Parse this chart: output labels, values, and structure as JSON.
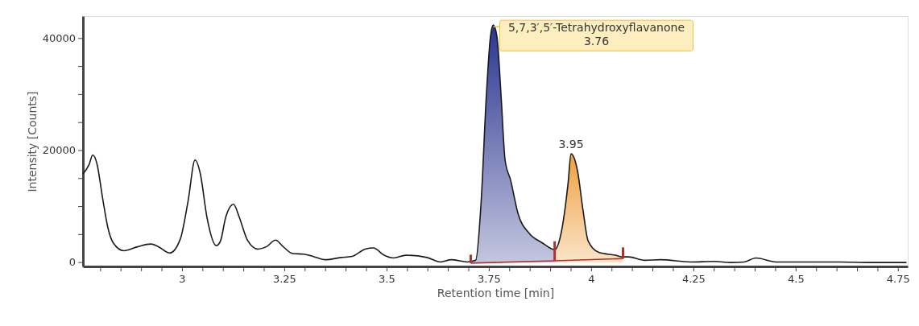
{
  "chart_data": {
    "type": "line",
    "xlabel": "Retention time [min]",
    "ylabel": "Intensity [Counts]",
    "xlim": [
      2.757,
      4.773
    ],
    "ylim": [
      -700,
      44000
    ],
    "xticks": [
      {
        "value": 2.8,
        "label": null
      },
      {
        "value": 2.85,
        "label": null
      },
      {
        "value": 2.9,
        "label": null
      },
      {
        "value": 2.95,
        "label": null
      },
      3,
      {
        "value": 3.05,
        "label": null
      },
      {
        "value": 3.1,
        "label": null
      },
      {
        "value": 3.15,
        "label": null
      },
      {
        "value": 3.2,
        "label": null
      },
      3.25,
      {
        "value": 3.3,
        "label": null
      },
      {
        "value": 3.35,
        "label": null
      },
      {
        "value": 3.4,
        "label": null
      },
      {
        "value": 3.45,
        "label": null
      },
      3.5,
      {
        "value": 3.55,
        "label": null
      },
      {
        "value": 3.6,
        "label": null
      },
      {
        "value": 3.65,
        "label": null
      },
      {
        "value": 3.7,
        "label": null
      },
      3.75,
      {
        "value": 3.8,
        "label": null
      },
      {
        "value": 3.85,
        "label": null
      },
      {
        "value": 3.9,
        "label": null
      },
      {
        "value": 3.95,
        "label": null
      },
      4,
      {
        "value": 4.05,
        "label": null
      },
      {
        "value": 4.1,
        "label": null
      },
      {
        "value": 4.15,
        "label": null
      },
      {
        "value": 4.2,
        "label": null
      },
      4.25,
      {
        "value": 4.3,
        "label": null
      },
      {
        "value": 4.35,
        "label": null
      },
      {
        "value": 4.4,
        "label": null
      },
      {
        "value": 4.45,
        "label": null
      },
      4.5,
      {
        "value": 4.55,
        "label": null
      },
      {
        "value": 4.6,
        "label": null
      },
      {
        "value": 4.65,
        "label": null
      },
      {
        "value": 4.7,
        "label": null
      },
      4.75
    ],
    "yticks": [
      0,
      {
        "value": 5000,
        "label": null
      },
      {
        "value": 10000,
        "label": null
      },
      {
        "value": 15000,
        "label": null
      },
      20000,
      {
        "value": 25000,
        "label": null
      },
      {
        "value": 30000,
        "label": null
      },
      {
        "value": 35000,
        "label": null
      },
      40000
    ],
    "grid": false,
    "series": [
      {
        "type": "area",
        "color": "#2a3590",
        "x": [
          3.705,
          3.717,
          3.73,
          3.743,
          3.753,
          3.76,
          3.769,
          3.779,
          3.789,
          3.802,
          3.821,
          3.848,
          3.88,
          3.91
        ],
        "values": [
          200,
          400,
          10500,
          29800,
          40300,
          42400,
          40300,
          29800,
          18200,
          14800,
          8600,
          5200,
          3500,
          2300
        ]
      },
      {
        "type": "area",
        "color": "#f0a040",
        "x": [
          3.91,
          3.927,
          3.943,
          3.95,
          3.966,
          3.979,
          3.992,
          4.018,
          4.058,
          4.077
        ],
        "values": [
          2300,
          5700,
          14300,
          19400,
          16300,
          9500,
          3800,
          1800,
          1300,
          1000
        ]
      },
      {
        "color": "#1a1a1a",
        "x": [
          2.757,
          2.772,
          2.781,
          2.791,
          2.805,
          2.818,
          2.831,
          2.857,
          2.89,
          2.923,
          2.942,
          2.969,
          2.995,
          3.014,
          3.031,
          3.044,
          3.06,
          3.083,
          3.093,
          3.106,
          3.125,
          3.139,
          3.159,
          3.185,
          3.205,
          3.228,
          3.244,
          3.27,
          3.297,
          3.323,
          3.349,
          3.388,
          3.415,
          3.447,
          3.467,
          3.493,
          3.516,
          3.546,
          3.598,
          3.631,
          3.657,
          3.697,
          3.705,
          3.717,
          3.73,
          3.743,
          3.753,
          3.76,
          3.769,
          3.779,
          3.789,
          3.802,
          3.821,
          3.848,
          3.88,
          3.91,
          3.927,
          3.943,
          3.95,
          3.966,
          3.979,
          3.992,
          4.018,
          4.058,
          4.077,
          4.091,
          4.13,
          4.169,
          4.242,
          4.301,
          4.34,
          4.373,
          4.402,
          4.451,
          4.51,
          4.609,
          4.675,
          4.77
        ],
        "values": [
          15800,
          17500,
          19200,
          17700,
          11500,
          6200,
          3500,
          2100,
          2800,
          3300,
          2800,
          1700,
          4200,
          11000,
          18300,
          15800,
          8100,
          3000,
          3800,
          8100,
          10400,
          8100,
          4000,
          2400,
          2800,
          4000,
          3000,
          1600,
          1500,
          1000,
          500,
          900,
          1100,
          2400,
          2600,
          1300,
          800,
          1300,
          900,
          100,
          500,
          100,
          200,
          400,
          10500,
          29800,
          40300,
          42400,
          40300,
          29800,
          18200,
          14800,
          8600,
          5200,
          3500,
          2300,
          5700,
          14300,
          19400,
          16300,
          9500,
          3800,
          1800,
          1300,
          1000,
          1000,
          400,
          500,
          100,
          200,
          0,
          100,
          800,
          100,
          100,
          100,
          0,
          0
        ]
      },
      {
        "type": "line",
        "color": "#b03030",
        "x": [
          3.705,
          3.91,
          4.077
        ],
        "values": [
          -100,
          300,
          700
        ],
        "errors": [
          [
            -100,
            1400
          ],
          [
            300,
            3800
          ],
          [
            700,
            2700
          ]
        ]
      }
    ],
    "annotations": [
      {
        "text": "5,7,3′,5′-Tetrahydroxyflavanone\n3.76",
        "x": 3.76,
        "y": 42400
      },
      {
        "text": "3.95",
        "x": 3.95,
        "y": 19400
      }
    ]
  }
}
